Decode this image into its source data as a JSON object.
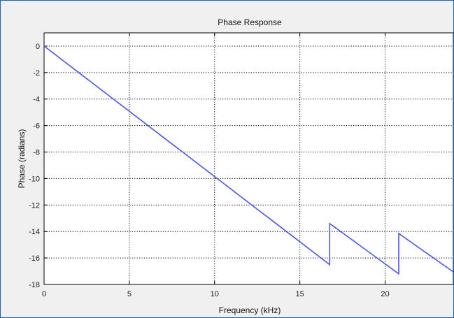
{
  "chart_data": {
    "type": "line",
    "title": "Phase Response",
    "xlabel": "Frequency (kHz)",
    "ylabel": "Phase (radians)",
    "xlim": [
      0,
      24
    ],
    "ylim": [
      -18,
      1
    ],
    "xticks": [
      0,
      5,
      10,
      15,
      20
    ],
    "yticks": [
      0,
      -2,
      -4,
      -6,
      -8,
      -10,
      -12,
      -14,
      -16,
      -18
    ],
    "grid": true,
    "colors": {
      "line": "#4a57e8",
      "background": "#f0f0f0",
      "axes": "#ffffff"
    },
    "series": [
      {
        "x": [
          0,
          16.75,
          16.75,
          20.8,
          20.8,
          24
        ],
        "y": [
          0,
          -16.5,
          -13.4,
          -17.2,
          -14.15,
          -17.05
        ]
      }
    ]
  }
}
